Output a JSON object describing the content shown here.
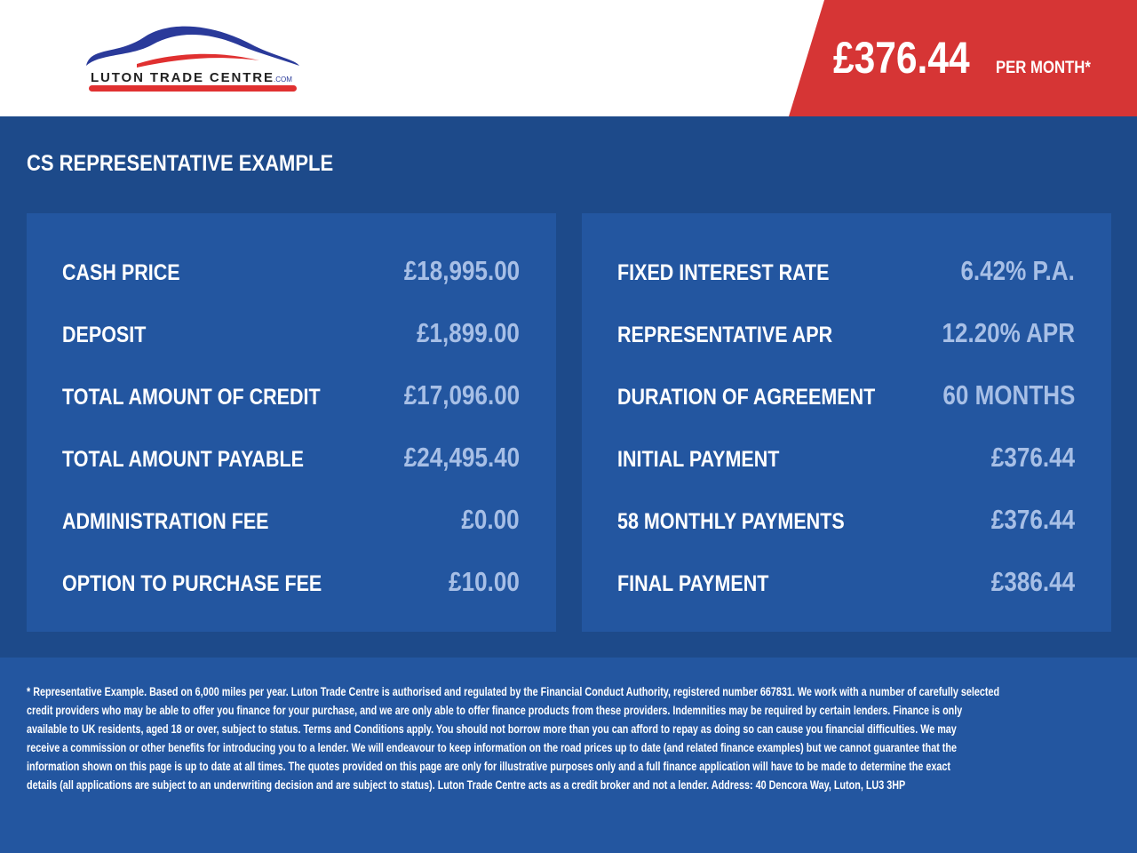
{
  "header": {
    "logo_text": "LUTON TRADE CENTRE.COM",
    "price": "£376.44",
    "per_month": "PER MONTH*",
    "colors": {
      "red": "#d63535",
      "blue": "#1d4a8a"
    }
  },
  "title": "CS REPRESENTATIVE EXAMPLE",
  "left": [
    {
      "label": "CASH PRICE",
      "value": "£18,995.00"
    },
    {
      "label": "DEPOSIT",
      "value": "£1,899.00"
    },
    {
      "label": "TOTAL AMOUNT OF CREDIT",
      "value": "£17,096.00"
    },
    {
      "label": "TOTAL AMOUNT PAYABLE",
      "value": "£24,495.40"
    },
    {
      "label": "ADMINISTRATION FEE",
      "value": "£0.00"
    },
    {
      "label": "OPTION TO PURCHASE FEE",
      "value": "£10.00"
    }
  ],
  "right": [
    {
      "label": "FIXED INTEREST RATE",
      "value": "6.42% P.A."
    },
    {
      "label": "REPRESENTATIVE APR",
      "value": "12.20% APR"
    },
    {
      "label": "DURATION OF AGREEMENT",
      "value": "60 MONTHS"
    },
    {
      "label": "INITIAL PAYMENT",
      "value": "£376.44"
    },
    {
      "label": "58 MONTHLY PAYMENTS",
      "value": "£376.44"
    },
    {
      "label": "FINAL PAYMENT",
      "value": "£386.44"
    }
  ],
  "footer": [
    "* Representative Example. Based on 6,000 miles per year. Luton Trade Centre is authorised and regulated by the Financial Conduct Authority, registered number 667831. We work with a number of carefully selected",
    "credit providers who may be able to offer you finance for your purchase, and we are only able to offer finance products from these providers. Indemnities may be required by certain lenders. Finance is only",
    "available to UK residents, aged 18 or over, subject to status. Terms and Conditions apply. You should not borrow more than you can afford to repay as doing so can cause you financial difficulties. We may",
    "receive a commission or other benefits for introducing you to a lender. We will endeavour to keep information on the road prices up to date (and related finance examples) but we cannot guarantee that the",
    "information shown on this page is up to date at all times. The quotes provided on this page are only for illustrative purposes only and a full finance application will have to be made to determine the exact",
    "details (all applications are subject to an underwriting decision and are subject to status). Luton Trade Centre acts as a credit broker and not a lender. Address: 40 Dencora Way, Luton, LU3 3HP"
  ]
}
